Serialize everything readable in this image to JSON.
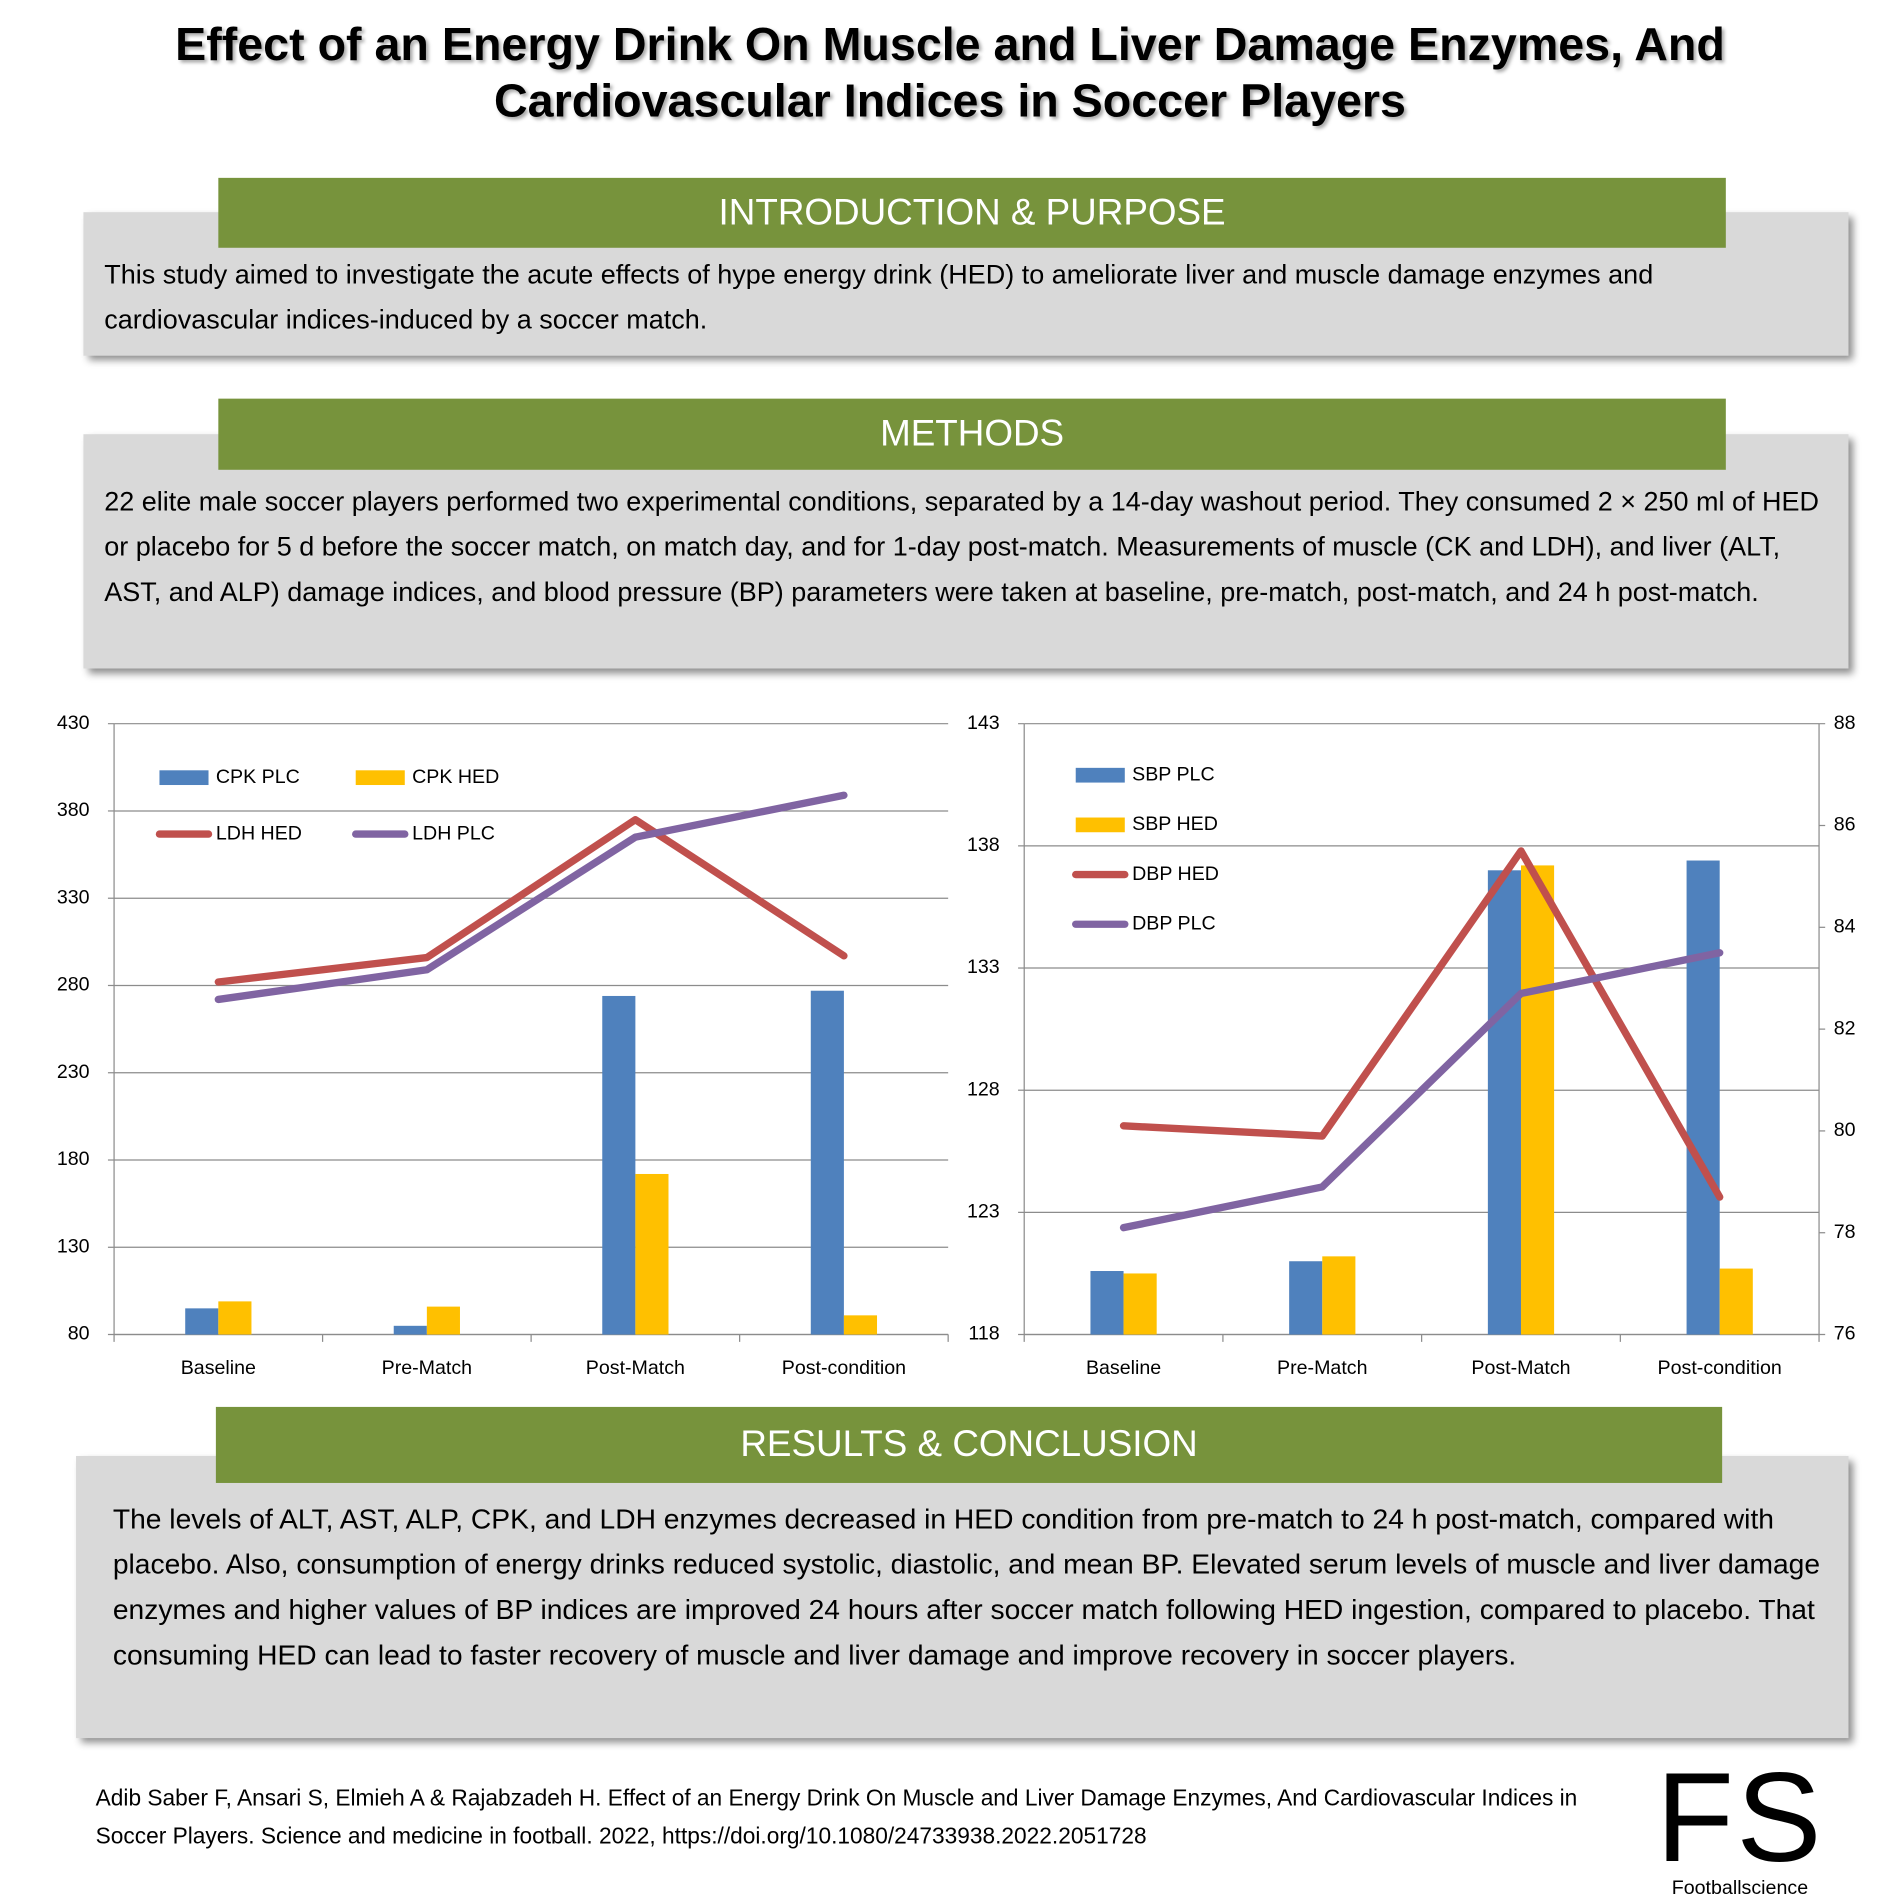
{
  "title": "Effect of an Energy Drink On Muscle and Liver Damage Enzymes, And Cardiovascular Indices in Soccer Players",
  "intro": {
    "heading": "INTRODUCTION & PURPOSE",
    "text": "This study aimed to investigate the acute effects of hype energy drink (HED) to ameliorate liver and muscle damage enzymes and cardiovascular indices-induced by a soccer match."
  },
  "methods": {
    "heading": "METHODS",
    "text": "22 elite male soccer players performed two experimental conditions, separated by a 14-day washout period. They consumed 2 × 250 ml of HED or placebo for 5 d before the soccer match, on match day, and for 1-day post-match. Measurements of muscle (CK and LDH), and liver (ALT, AST, and ALP) damage indices, and blood pressure (BP) parameters were taken at baseline, pre-match, post-match, and 24 h post-match."
  },
  "chart_data": [
    {
      "type": "combo",
      "categories": [
        "Baseline",
        "Pre-Match",
        "Post-Match",
        "Post-condition"
      ],
      "series": [
        {
          "name": "CPK PLC",
          "kind": "bar",
          "color": "#4f81bd",
          "values": [
            95,
            85,
            274,
            277
          ]
        },
        {
          "name": "CPK HED",
          "kind": "bar",
          "color": "#ffc000",
          "values": [
            99,
            96,
            172,
            91
          ]
        },
        {
          "name": "LDH HED",
          "kind": "line",
          "color": "#c0504d",
          "values": [
            282,
            296,
            375,
            297
          ]
        },
        {
          "name": "LDH PLC",
          "kind": "line",
          "color": "#8064a2",
          "values": [
            272,
            289,
            365,
            389
          ]
        }
      ],
      "ylim": [
        80,
        430
      ],
      "yticks": [
        80,
        130,
        180,
        230,
        280,
        330,
        380,
        430
      ],
      "grid": true,
      "legend": "top-left"
    },
    {
      "type": "combo",
      "categories": [
        "Baseline",
        "Pre-Match",
        "Post-Match",
        "Post-condition"
      ],
      "series": [
        {
          "name": "SBP PLC",
          "kind": "bar",
          "color": "#4f81bd",
          "values": [
            120.6,
            121,
            137,
            137.4
          ]
        },
        {
          "name": "SBP HED",
          "kind": "bar",
          "color": "#ffc000",
          "values": [
            120.5,
            121.2,
            137.2,
            120.7
          ]
        },
        {
          "name": "DBP HED",
          "kind": "line",
          "color": "#c0504d",
          "axis": "y2",
          "values": [
            80.1,
            79.9,
            85.5,
            78.7
          ]
        },
        {
          "name": "DBP PLC",
          "kind": "line",
          "color": "#8064a2",
          "axis": "y2",
          "values": [
            78.1,
            78.9,
            82.7,
            83.5
          ]
        }
      ],
      "ylim": [
        118,
        143
      ],
      "yticks": [
        118,
        123,
        128,
        133,
        138,
        143
      ],
      "y2lim": [
        76,
        88
      ],
      "y2ticks": [
        76,
        78,
        80,
        82,
        84,
        86,
        88
      ],
      "grid": true,
      "legend": "top-left"
    }
  ],
  "results": {
    "heading": "RESULTS & CONCLUSION",
    "text": "The levels of ALT, AST, ALP, CPK, and LDH enzymes decreased in HED condition from pre-match to 24 h post-match, compared with placebo. Also, consumption of energy drinks reduced systolic, diastolic, and mean BP. Elevated serum levels of muscle and liver damage enzymes and higher values of BP indices are improved 24 hours after soccer match following HED ingestion, compared to placebo. That consuming HED can lead to faster recovery of muscle and liver damage and improve recovery in soccer players."
  },
  "citation": "Adib Saber F, Ansari S, Elmieh A & Rajabzadeh H. Effect of an Energy Drink On Muscle and Liver Damage Enzymes, And Cardiovascular Indices in Soccer Players. Science and medicine in football. 2022, https://doi.org/10.1080/24733938.2022.2051728",
  "logo": {
    "mark": "FS",
    "name": "Footballscience"
  }
}
